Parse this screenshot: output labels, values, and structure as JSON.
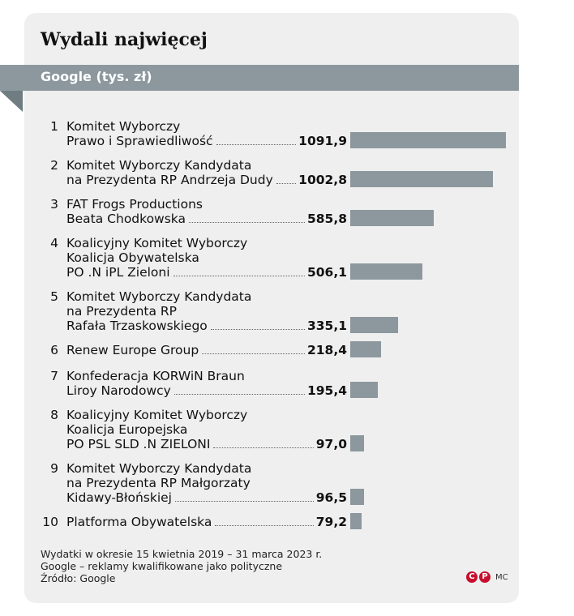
{
  "title": "Wydali najwięcej",
  "subtitle": "Google (tys. zł)",
  "chart_data": {
    "type": "bar",
    "orientation": "horizontal",
    "title": "Wydali najwięcej",
    "subtitle": "Google (tys. zł)",
    "xlim": [
      0,
      1091.9
    ],
    "grid": false,
    "items": [
      {
        "rank": "1",
        "lines": [
          "Komitet Wyborczy",
          "Prawo i Sprawiedliwość"
        ],
        "value": 1091.9,
        "label": "1091,9"
      },
      {
        "rank": "2",
        "lines": [
          "Komitet Wyborczy Kandydata",
          "na Prezydenta RP Andrzeja Dudy"
        ],
        "value": 1002.8,
        "label": "1002,8"
      },
      {
        "rank": "3",
        "lines": [
          "FAT Frogs Productions",
          "Beata Chodkowska"
        ],
        "value": 585.8,
        "label": "585,8"
      },
      {
        "rank": "4",
        "lines": [
          "Koalicyjny Komitet Wyborczy",
          "Koalicja Obywatelska",
          "PO .N iPL Zieloni"
        ],
        "value": 506.1,
        "label": "506,1"
      },
      {
        "rank": "5",
        "lines": [
          "Komitet Wyborczy Kandydata",
          "na Prezydenta RP",
          "Rafała Trzaskowskiego"
        ],
        "value": 335.1,
        "label": "335,1"
      },
      {
        "rank": "6",
        "lines": [
          "Renew Europe Group"
        ],
        "value": 218.4,
        "label": "218,4"
      },
      {
        "rank": "7",
        "lines": [
          "Konfederacja KORWiN Braun",
          "Liroy Narodowcy"
        ],
        "value": 195.4,
        "label": "195,4"
      },
      {
        "rank": "8",
        "lines": [
          "Koalicyjny Komitet Wyborczy",
          "Koalicja Europejska",
          "PO PSL SLD .N ZIELONI"
        ],
        "value": 97.0,
        "label": "97,0"
      },
      {
        "rank": "9",
        "lines": [
          "Komitet Wyborczy Kandydata",
          "na Prezydenta RP Małgorzaty",
          "Kidawy-Błońskiej"
        ],
        "value": 96.5,
        "label": "96,5"
      },
      {
        "rank": "10",
        "lines": [
          "Platforma Obywatelska"
        ],
        "value": 79.2,
        "label": "79,2"
      }
    ]
  },
  "footer": {
    "lines": [
      "Wydatki w okresie 15 kwietnia 2019 – 31 marca 2023 r.",
      "Google – reklamy kwalifikowane jako polityczne",
      "Źródło: Google"
    ],
    "logo_letters": [
      "C",
      "P"
    ],
    "initials": "MC"
  },
  "colors": {
    "bar": "#8c989e",
    "banner": "#8c989e",
    "card": "#efefef",
    "logo": "#c8102e"
  }
}
